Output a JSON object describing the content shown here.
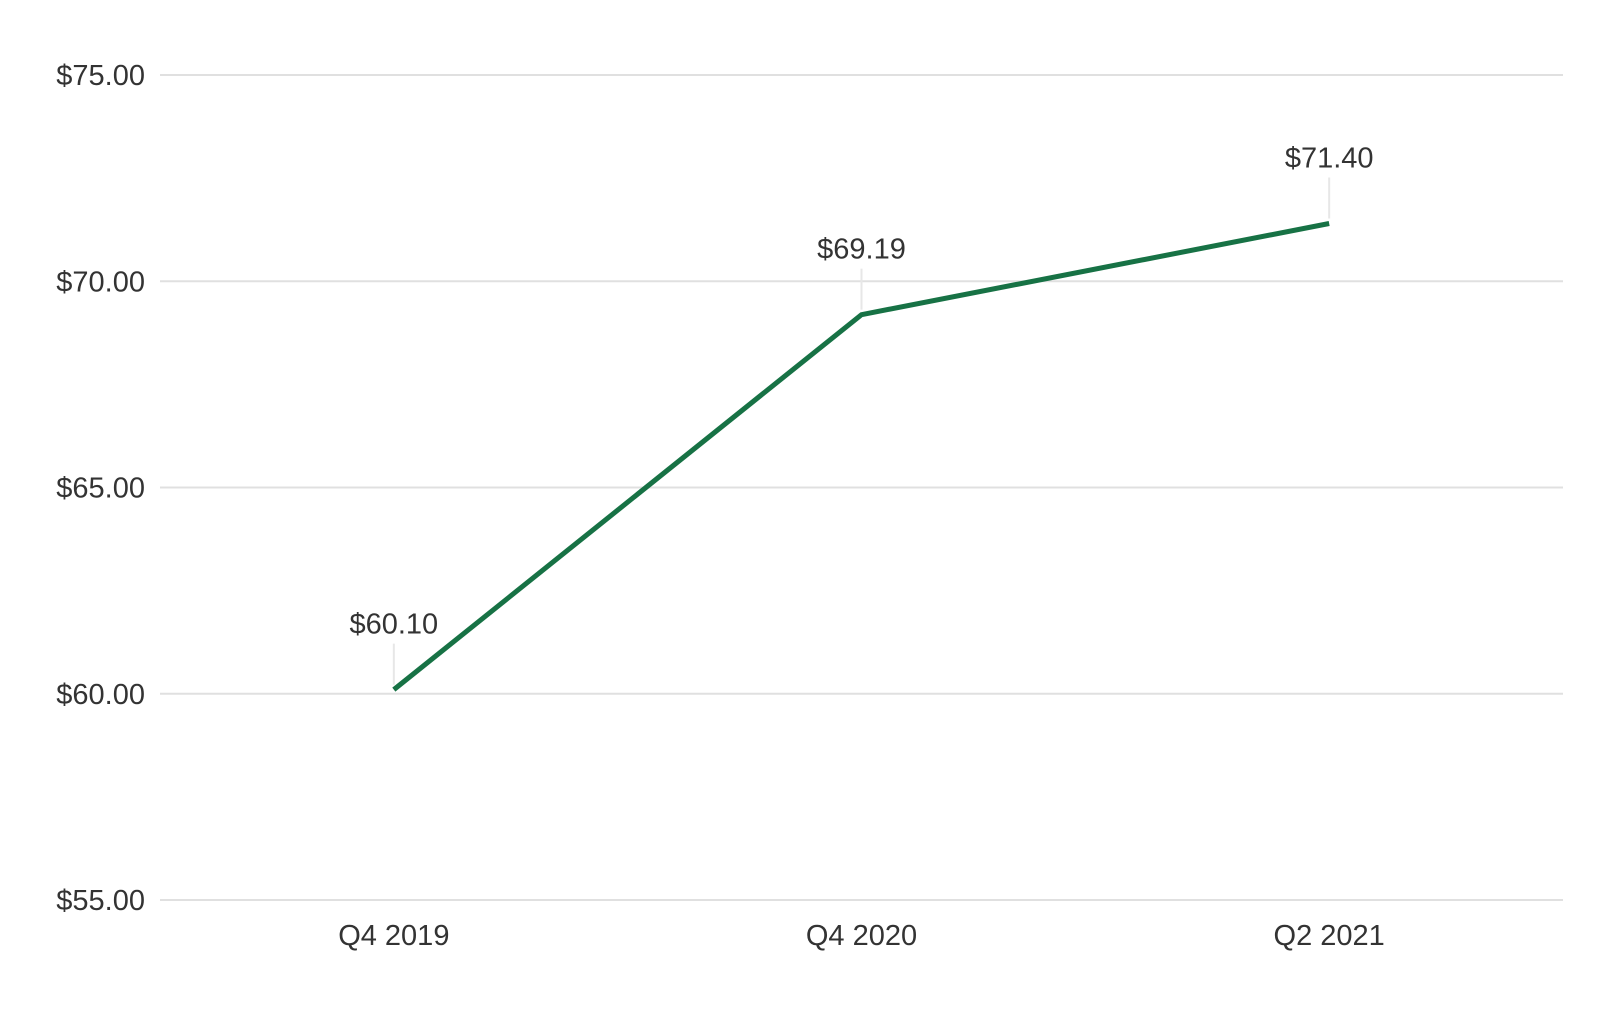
{
  "chart_data": {
    "type": "line",
    "title": "",
    "xlabel": "",
    "ylabel": "",
    "categories": [
      "Q4 2019",
      "Q4 2020",
      "Q2 2021"
    ],
    "series": [
      {
        "name": "price",
        "values": [
          60.1,
          69.19,
          71.4
        ]
      }
    ],
    "data_labels": [
      "$60.10",
      "$69.19",
      "$71.40"
    ],
    "y_ticks": [
      {
        "label": "$75.00",
        "value": 75
      },
      {
        "label": "$70.00",
        "value": 70
      },
      {
        "label": "$65.00",
        "value": 65
      },
      {
        "label": "$60.00",
        "value": 60
      },
      {
        "label": "$55.00",
        "value": 55
      }
    ],
    "ylim": [
      55,
      75
    ],
    "grid": true,
    "legend": "none",
    "colors": {
      "line": "#177245",
      "gridline": "#e0e0e0",
      "leader": "#e7e7e7",
      "text": "#333333",
      "background": "#ffffff"
    }
  }
}
